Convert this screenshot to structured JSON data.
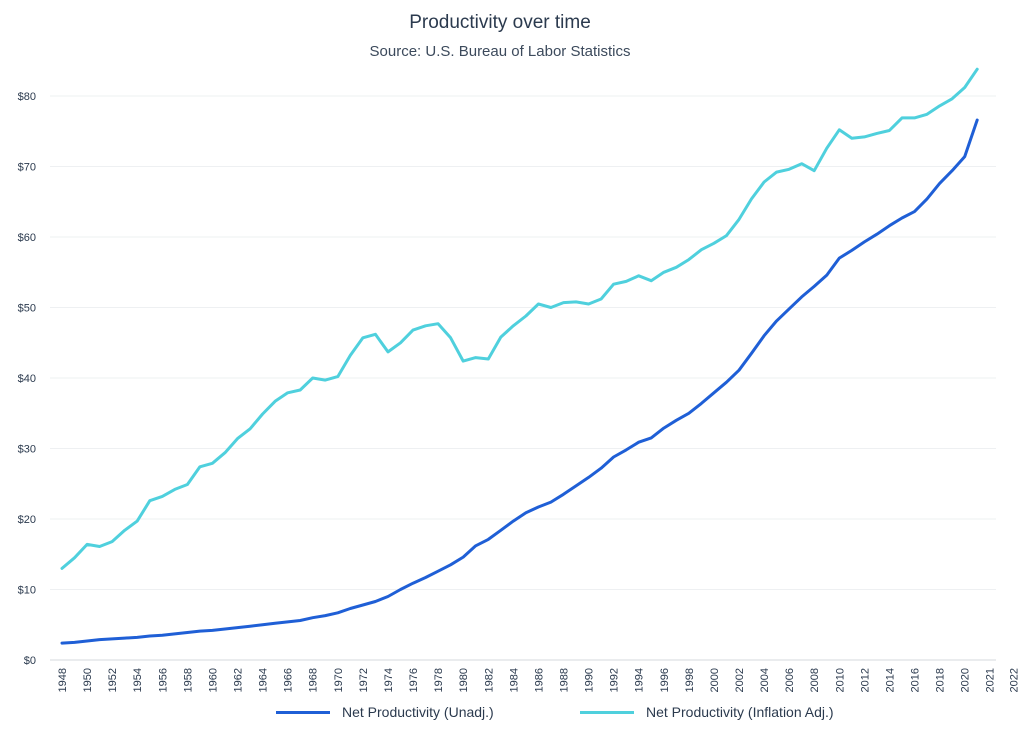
{
  "chart_data": {
    "type": "line",
    "title": "Productivity over time",
    "subtitle": "Source: U.S. Bureau of Labor Statistics",
    "xlabel": "",
    "ylabel": "",
    "ylim": [
      0,
      80
    ],
    "yticks": [
      "$0",
      "$10",
      "$20",
      "$30",
      "$40",
      "$50",
      "$60",
      "$70",
      "$80"
    ],
    "xticks": [
      "1948",
      "1950",
      "1952",
      "1954",
      "1956",
      "1958",
      "1960",
      "1962",
      "1964",
      "1966",
      "1968",
      "1970",
      "1972",
      "1974",
      "1976",
      "1978",
      "1980",
      "1982",
      "1984",
      "1986",
      "1988",
      "1990",
      "1992",
      "1994",
      "1996",
      "1998",
      "2000",
      "2002",
      "2004",
      "2006",
      "2008",
      "2010",
      "2012",
      "2014",
      "2016",
      "2018",
      "2020",
      "2021",
      "2022"
    ],
    "grid": true,
    "legend_position": "bottom",
    "x": [
      1948,
      1949,
      1950,
      1951,
      1952,
      1953,
      1954,
      1955,
      1956,
      1957,
      1958,
      1959,
      1960,
      1961,
      1962,
      1963,
      1964,
      1965,
      1966,
      1967,
      1968,
      1969,
      1970,
      1971,
      1972,
      1973,
      1974,
      1975,
      1976,
      1977,
      1978,
      1979,
      1980,
      1981,
      1982,
      1983,
      1984,
      1985,
      1986,
      1987,
      1988,
      1989,
      1990,
      1991,
      1992,
      1993,
      1994,
      1995,
      1996,
      1997,
      1998,
      1999,
      2000,
      2001,
      2002,
      2003,
      2004,
      2005,
      2006,
      2007,
      2008,
      2009,
      2010,
      2011,
      2012,
      2013,
      2014,
      2015,
      2016,
      2017,
      2018,
      2019,
      2020,
      2021,
      2022
    ],
    "series": [
      {
        "name": "Net Productivity (Unadj.)",
        "color": "#1f5fd6",
        "values": [
          2.4,
          2.5,
          2.7,
          2.9,
          3.0,
          3.1,
          3.2,
          3.4,
          3.5,
          3.7,
          3.9,
          4.1,
          4.2,
          4.4,
          4.6,
          4.8,
          5.0,
          5.2,
          5.4,
          5.6,
          6.0,
          6.3,
          6.7,
          7.3,
          7.8,
          8.3,
          9.0,
          10.0,
          10.9,
          11.7,
          12.6,
          13.5,
          14.6,
          16.2,
          17.1,
          18.4,
          19.7,
          20.9,
          21.7,
          22.4,
          23.5,
          24.7,
          25.9,
          27.2,
          28.8,
          29.8,
          30.9,
          31.5,
          32.9,
          34.0,
          35.0,
          36.4,
          37.9,
          39.4,
          41.1,
          43.5,
          46.0,
          48.1,
          49.8,
          51.5,
          53.0,
          54.6,
          57.0,
          58.1,
          59.3,
          60.4,
          61.6,
          62.7,
          63.6,
          65.4,
          67.6,
          69.4,
          71.4,
          76.6,
          null
        ]
      },
      {
        "name": "Net Productivity (Inflation Adj.)",
        "color": "#4fd0dd",
        "values": [
          13.0,
          14.5,
          16.4,
          16.1,
          16.8,
          18.4,
          19.7,
          22.6,
          23.2,
          24.2,
          24.9,
          27.4,
          27.9,
          29.4,
          31.4,
          32.8,
          34.9,
          36.7,
          37.9,
          38.3,
          40.0,
          39.7,
          40.2,
          43.2,
          45.7,
          46.2,
          43.7,
          45.0,
          46.8,
          47.4,
          47.7,
          45.7,
          42.4,
          42.9,
          42.7,
          45.8,
          47.4,
          48.8,
          50.5,
          50.0,
          50.7,
          50.8,
          50.5,
          51.2,
          53.3,
          53.7,
          54.5,
          53.8,
          55.0,
          55.7,
          56.8,
          58.2,
          59.1,
          60.2,
          62.5,
          65.4,
          67.8,
          69.2,
          69.6,
          70.4,
          69.4,
          72.6,
          75.2,
          74.0,
          74.2,
          74.7,
          75.1,
          76.9,
          76.9,
          77.4,
          78.6,
          79.6,
          81.2,
          83.8,
          null
        ]
      }
    ]
  }
}
